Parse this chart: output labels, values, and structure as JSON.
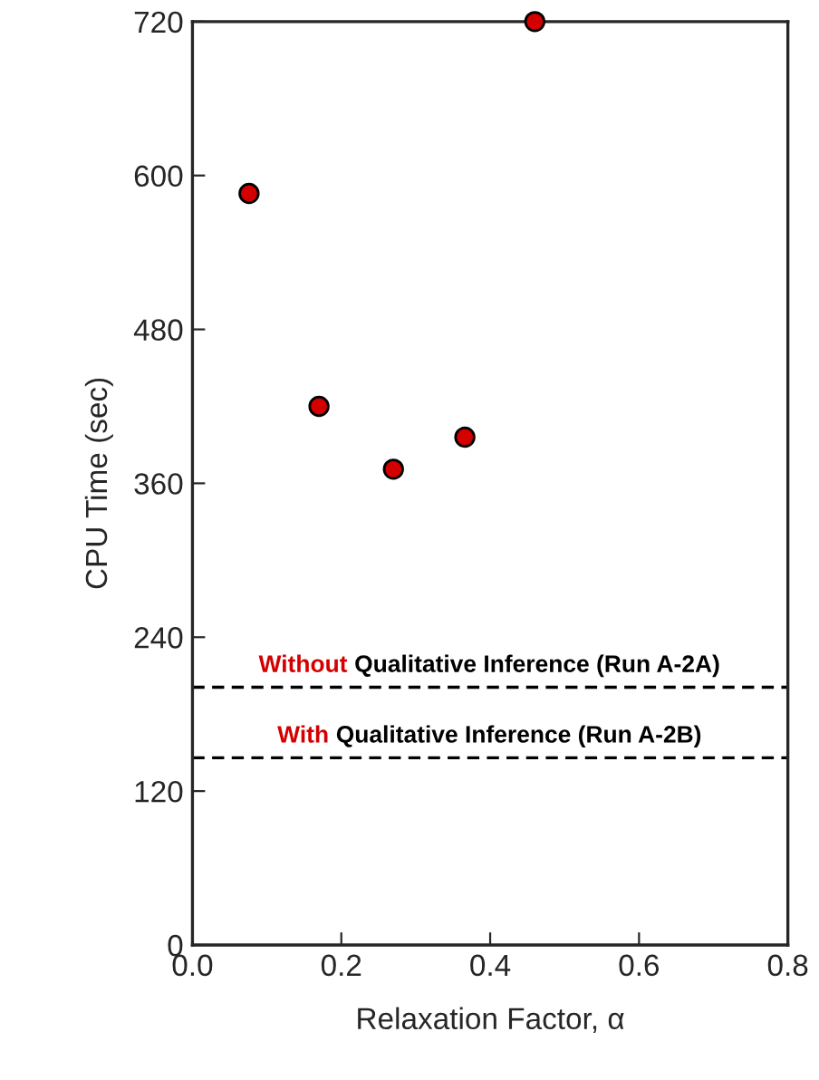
{
  "chart_data": {
    "type": "scatter",
    "xlabel": "Relaxation Factor, α",
    "ylabel": "CPU Time (sec)",
    "x": [
      0.076,
      0.17,
      0.27,
      0.366,
      0.46
    ],
    "series": [
      {
        "color": "#d40000",
        "values": [
          586,
          420,
          371,
          396,
          720
        ]
      }
    ],
    "xlim": [
      0,
      0.8
    ],
    "xticks": [
      {
        "value": 0,
        "label": "0.0"
      },
      {
        "value": 0.2,
        "label": "0.2"
      },
      {
        "value": 0.4,
        "label": "0.4"
      },
      {
        "value": 0.6,
        "label": "0.6"
      },
      {
        "value": 0.8,
        "label": "0.8"
      }
    ],
    "ylim": [
      0,
      720
    ],
    "yticks": [
      0,
      120,
      240,
      360,
      480,
      600,
      720
    ],
    "marker": "circle",
    "grid": false,
    "legend": false,
    "ref_lines": [
      {
        "axis": "y",
        "value": 201,
        "label": "Without Qualitative Inference (Run A-2A)",
        "color": "#000000",
        "line_style": "dashed"
      },
      {
        "axis": "y",
        "value": 146,
        "label": "With Qualitative Inference (Run A-2B)",
        "color": "#000000",
        "line_style": "dashed"
      }
    ]
  }
}
